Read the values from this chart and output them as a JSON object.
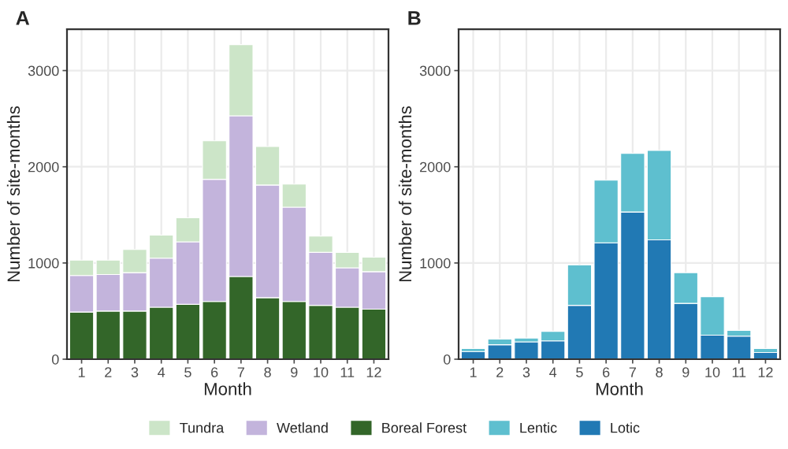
{
  "chart_data": [
    {
      "type": "bar",
      "title": "A",
      "xlabel": "Month",
      "ylabel": "Number of site-months",
      "stacked": true,
      "categories": [
        "1",
        "2",
        "3",
        "4",
        "5",
        "6",
        "7",
        "8",
        "9",
        "10",
        "11",
        "12"
      ],
      "ylim": [
        0,
        3430
      ],
      "yticks": [
        0,
        1000,
        2000,
        3000
      ],
      "grid": true,
      "legend": "bottom",
      "series": [
        {
          "name": "Boreal Forest",
          "color": "#336629",
          "values": [
            490,
            500,
            500,
            540,
            570,
            600,
            860,
            640,
            600,
            560,
            540,
            520
          ]
        },
        {
          "name": "Wetland",
          "color": "#c3b4dc",
          "values": [
            380,
            380,
            400,
            510,
            650,
            1270,
            1670,
            1170,
            980,
            550,
            410,
            390
          ]
        },
        {
          "name": "Tundra",
          "color": "#cce5c8",
          "values": [
            160,
            150,
            240,
            240,
            250,
            400,
            740,
            400,
            240,
            170,
            160,
            150
          ]
        }
      ]
    },
    {
      "type": "bar",
      "title": "B",
      "xlabel": "Month",
      "ylabel": "Number of site-months",
      "stacked": true,
      "categories": [
        "1",
        "2",
        "3",
        "4",
        "5",
        "6",
        "7",
        "8",
        "9",
        "10",
        "11",
        "12"
      ],
      "ylim": [
        0,
        3430
      ],
      "yticks": [
        0,
        1000,
        2000,
        3000
      ],
      "grid": true,
      "legend": "bottom",
      "series": [
        {
          "name": "Lotic",
          "color": "#2179b4",
          "values": [
            80,
            150,
            180,
            190,
            560,
            1210,
            1530,
            1240,
            580,
            250,
            240,
            70
          ]
        },
        {
          "name": "Lentic",
          "color": "#5ebfcf",
          "values": [
            30,
            60,
            40,
            100,
            420,
            650,
            610,
            930,
            320,
            400,
            60,
            40
          ]
        }
      ]
    }
  ]
}
